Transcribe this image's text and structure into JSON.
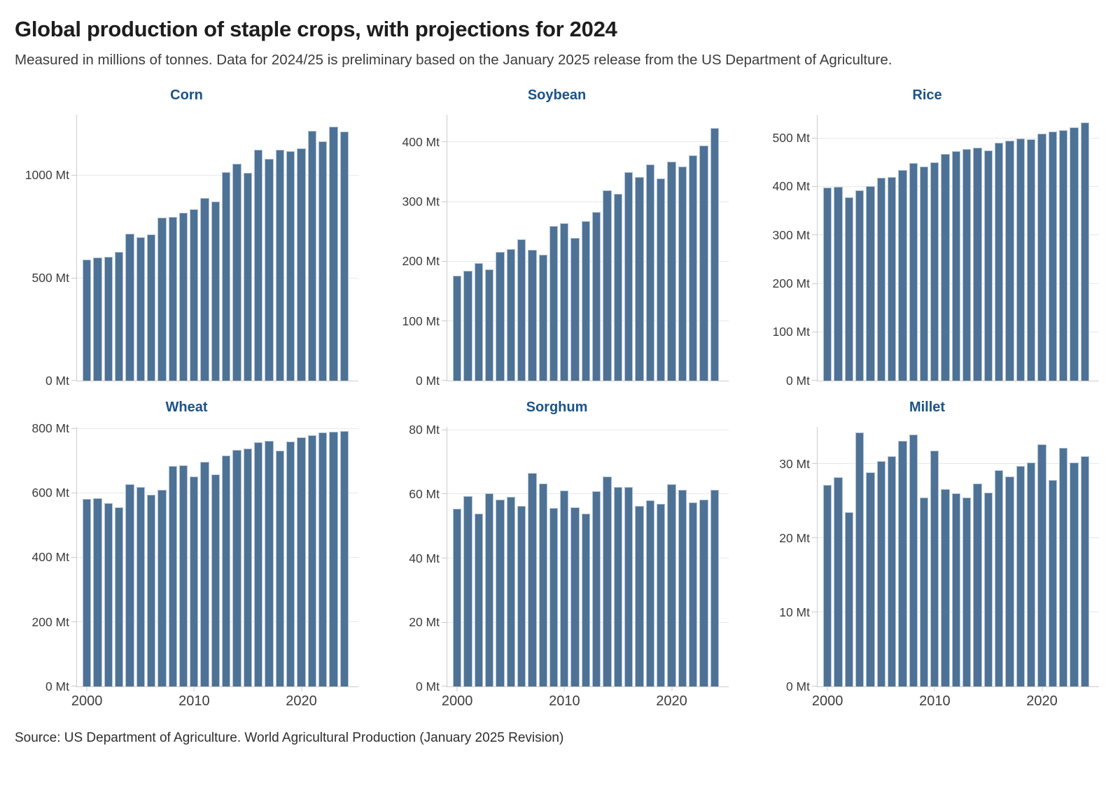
{
  "page": {
    "title": "Global production of staple crops, with projections for 2024",
    "subtitle": "Measured in millions of tonnes. Data for 2024/25 is preliminary based on the January 2025 release from the US Department of Agriculture.",
    "source": "Source: US Department of Agriculture. World Agricultural Production (January 2025 Revision)"
  },
  "colors": {
    "bar_fill": "#4e7296",
    "bar_edge": "#b3c3d3",
    "chart_title_text": "#1a5389",
    "gridline": "#e8e8e8",
    "axis_spine": "#cccccc",
    "tick_text": "#3d3d3d"
  },
  "chart_data": [
    {
      "type": "bar",
      "title": "Corn",
      "unit": "Mt",
      "categories": [
        2000,
        2001,
        2002,
        2003,
        2004,
        2005,
        2006,
        2007,
        2008,
        2009,
        2010,
        2011,
        2012,
        2013,
        2014,
        2015,
        2016,
        2017,
        2018,
        2019,
        2020,
        2021,
        2022,
        2023,
        2024
      ],
      "values": [
        590,
        600,
        603,
        627,
        715,
        699,
        713,
        795,
        800,
        820,
        835,
        890,
        872,
        1018,
        1057,
        1014,
        1127,
        1082,
        1124,
        1120,
        1131,
        1218,
        1166,
        1237,
        1215
      ],
      "yticks": [
        0,
        500,
        1000
      ],
      "ylim": [
        0,
        1295
      ],
      "xticks": [
        2000,
        2010,
        2020
      ],
      "show_x_labels": false,
      "grid": true,
      "legend": "none"
    },
    {
      "type": "bar",
      "title": "Soybean",
      "unit": "Mt",
      "categories": [
        2000,
        2001,
        2002,
        2003,
        2004,
        2005,
        2006,
        2007,
        2008,
        2009,
        2010,
        2011,
        2012,
        2013,
        2014,
        2015,
        2016,
        2017,
        2018,
        2019,
        2020,
        2021,
        2022,
        2023,
        2024
      ],
      "values": [
        176,
        185,
        197,
        187,
        216,
        221,
        237,
        220,
        212,
        260,
        265,
        240,
        268,
        283,
        320,
        314,
        350,
        342,
        363,
        340,
        368,
        359,
        378,
        395,
        424
      ],
      "yticks": [
        0,
        100,
        200,
        300,
        400
      ],
      "ylim": [
        0,
        446
      ],
      "xticks": [
        2000,
        2010,
        2020
      ],
      "show_x_labels": false,
      "grid": true,
      "legend": "none"
    },
    {
      "type": "bar",
      "title": "Rice",
      "unit": "Mt",
      "categories": [
        2000,
        2001,
        2002,
        2003,
        2004,
        2005,
        2006,
        2007,
        2008,
        2009,
        2010,
        2011,
        2012,
        2013,
        2014,
        2015,
        2016,
        2017,
        2018,
        2019,
        2020,
        2021,
        2022,
        2023,
        2024
      ],
      "values": [
        399,
        400,
        378,
        392,
        401,
        418,
        420,
        434,
        449,
        441,
        450,
        467,
        473,
        478,
        480,
        475,
        491,
        495,
        499,
        498,
        510,
        514,
        516,
        522,
        533
      ],
      "yticks": [
        0,
        100,
        200,
        300,
        400,
        500
      ],
      "ylim": [
        0,
        548
      ],
      "xticks": [
        2000,
        2010,
        2020
      ],
      "show_x_labels": false,
      "grid": true,
      "legend": "none"
    },
    {
      "type": "bar",
      "title": "Wheat",
      "unit": "Mt",
      "categories": [
        2000,
        2001,
        2002,
        2003,
        2004,
        2005,
        2006,
        2007,
        2008,
        2009,
        2010,
        2011,
        2012,
        2013,
        2014,
        2015,
        2016,
        2017,
        2018,
        2019,
        2020,
        2021,
        2022,
        2023,
        2024
      ],
      "values": [
        583,
        584,
        570,
        556,
        627,
        620,
        596,
        611,
        684,
        687,
        651,
        697,
        659,
        717,
        733,
        738,
        757,
        762,
        731,
        761,
        774,
        780,
        789,
        790,
        793
      ],
      "yticks": [
        0,
        200,
        400,
        600,
        800
      ],
      "ylim": [
        0,
        805
      ],
      "xticks": [
        2000,
        2010,
        2020
      ],
      "show_x_labels": true,
      "grid": true,
      "legend": "none"
    },
    {
      "type": "bar",
      "title": "Sorghum",
      "unit": "Mt",
      "categories": [
        2000,
        2001,
        2002,
        2003,
        2004,
        2005,
        2006,
        2007,
        2008,
        2009,
        2010,
        2011,
        2012,
        2013,
        2014,
        2015,
        2016,
        2017,
        2018,
        2019,
        2020,
        2021,
        2022,
        2023,
        2024
      ],
      "values": [
        55.5,
        59.5,
        54.0,
        60.3,
        58.3,
        59.2,
        56.4,
        66.6,
        63.4,
        55.7,
        61.2,
        56.0,
        54.0,
        61.0,
        65.5,
        62.2,
        62.3,
        56.4,
        58.2,
        57.0,
        63.1,
        61.5,
        57.5,
        58.4,
        61.5
      ],
      "yticks": [
        0,
        20,
        40,
        60,
        80
      ],
      "ylim": [
        0,
        81
      ],
      "xticks": [
        2000,
        2010,
        2020
      ],
      "show_x_labels": true,
      "grid": true,
      "legend": "none"
    },
    {
      "type": "bar",
      "title": "Millet",
      "unit": "Mt",
      "categories": [
        2000,
        2001,
        2002,
        2003,
        2004,
        2005,
        2006,
        2007,
        2008,
        2009,
        2010,
        2011,
        2012,
        2013,
        2014,
        2015,
        2016,
        2017,
        2018,
        2019,
        2020,
        2021,
        2022,
        2023,
        2024
      ],
      "values": [
        27.2,
        28.2,
        23.5,
        34.3,
        28.9,
        30.4,
        31.1,
        33.1,
        34.0,
        25.5,
        31.8,
        26.6,
        26.1,
        25.5,
        27.4,
        26.2,
        29.2,
        28.3,
        29.7,
        30.2,
        32.7,
        27.9,
        32.2,
        30.2,
        31.1
      ],
      "yticks": [
        0,
        10,
        20,
        30
      ],
      "ylim": [
        0,
        35
      ],
      "xticks": [
        2000,
        2010,
        2020
      ],
      "show_x_labels": true,
      "grid": true,
      "legend": "none"
    }
  ]
}
